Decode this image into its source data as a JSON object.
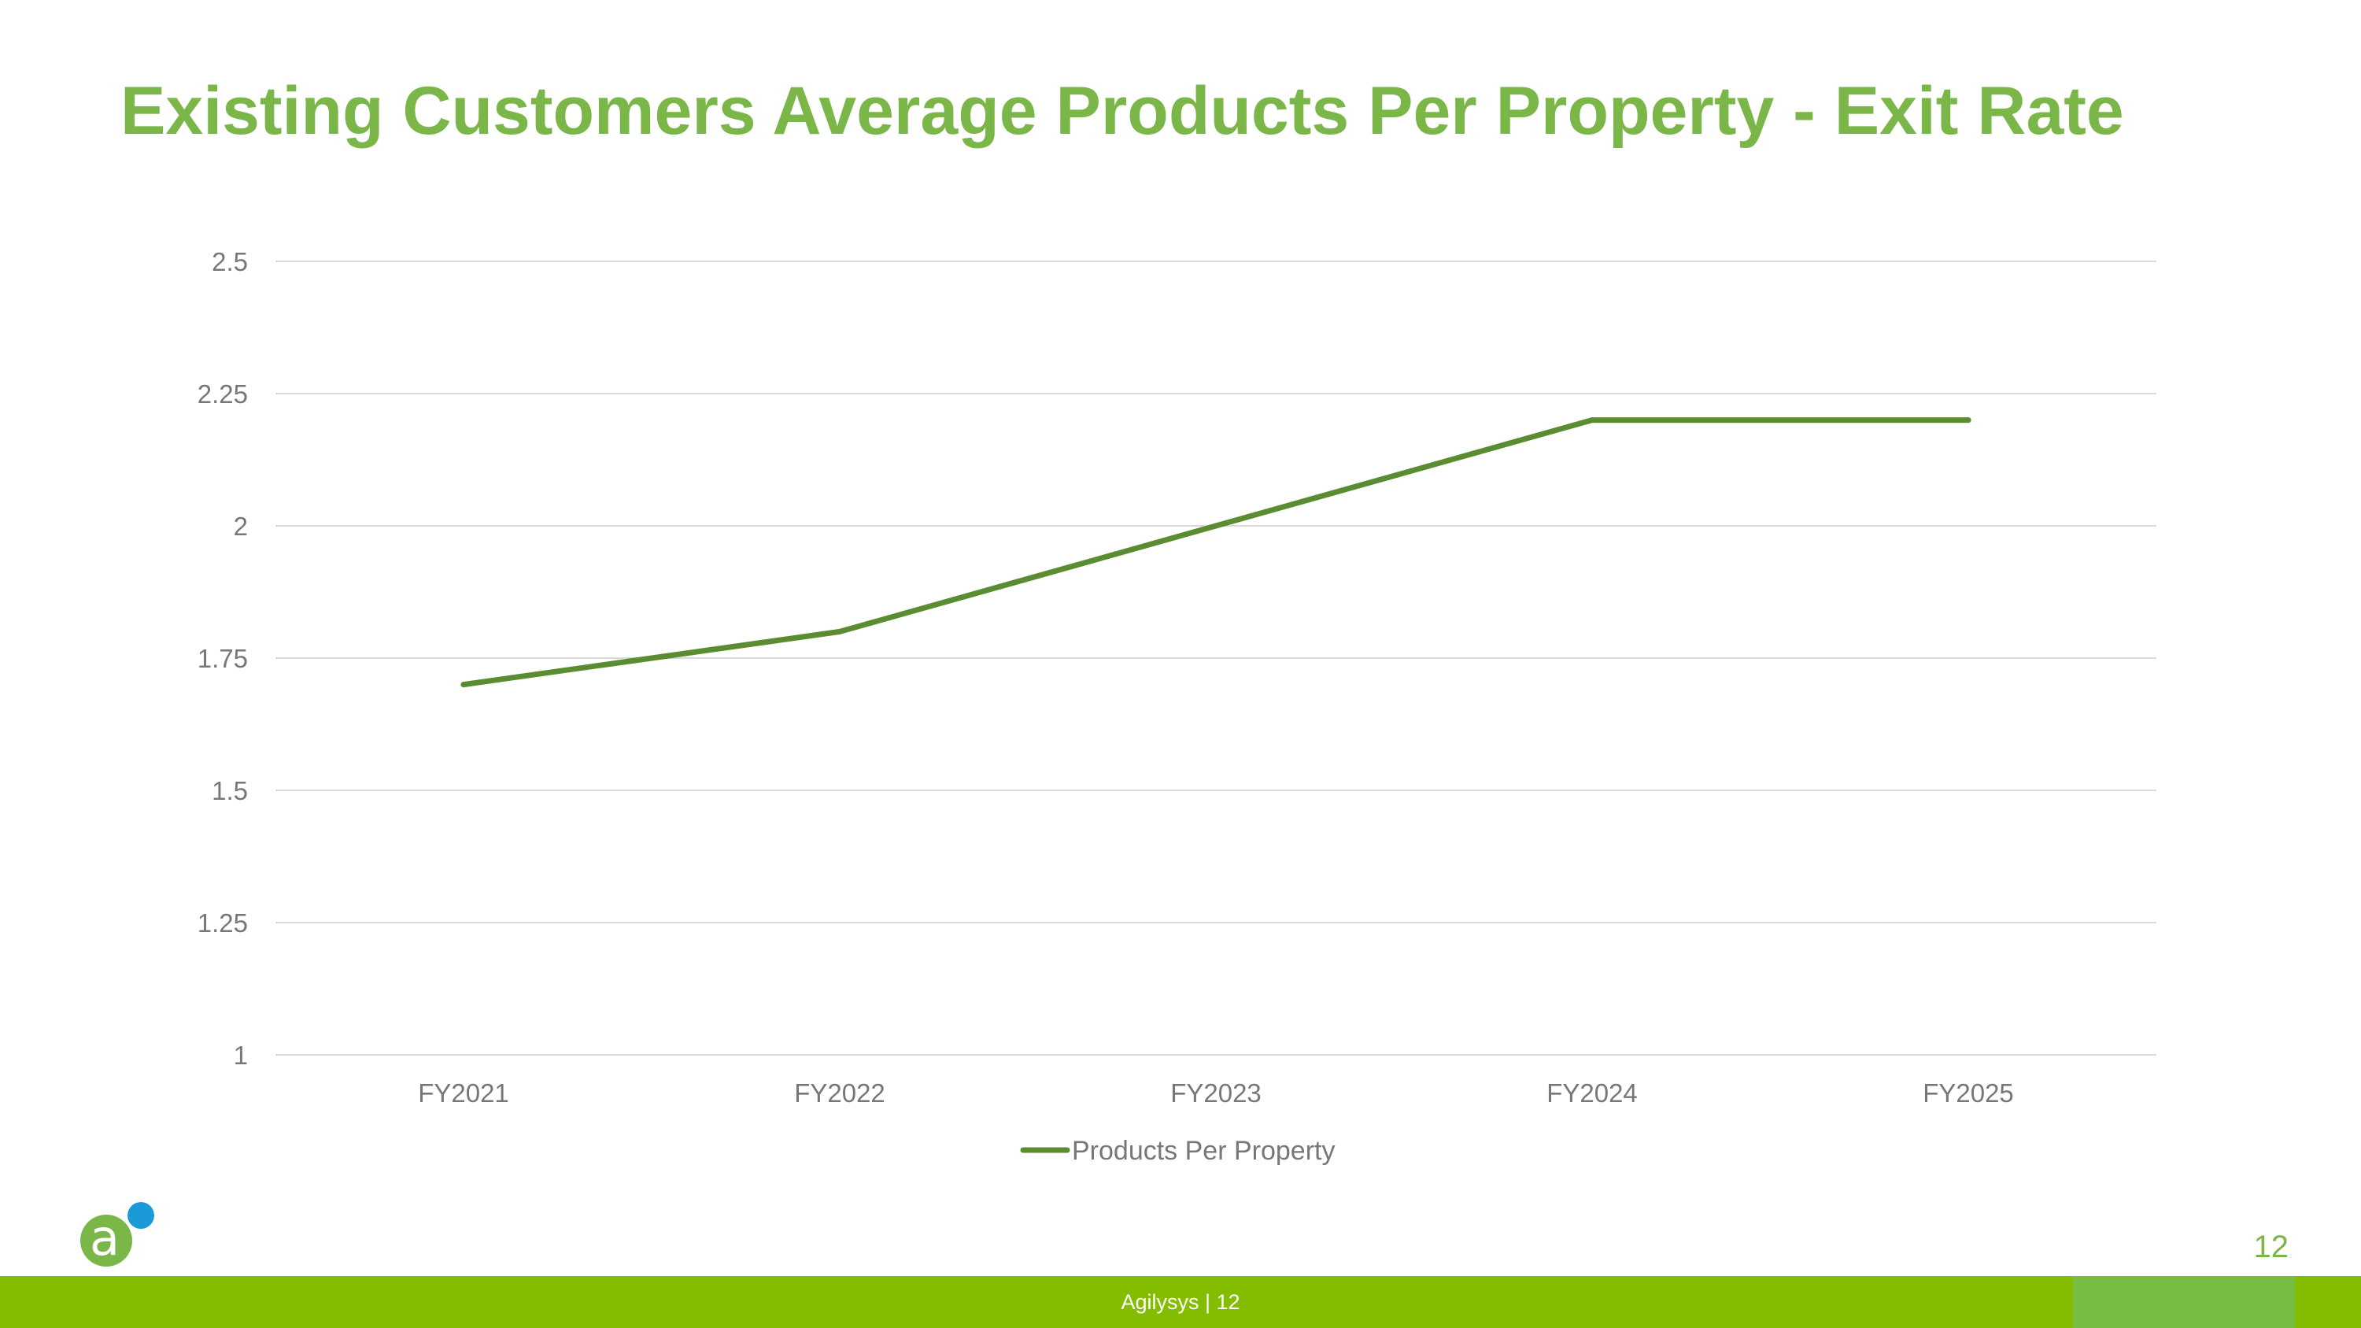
{
  "title": "Existing Customers Average Products Per Property - Exit Rate",
  "chart_data": {
    "type": "line",
    "title": "",
    "xlabel": "",
    "ylabel": "",
    "categories": [
      "FY2021",
      "FY2022",
      "FY2023",
      "FY2024",
      "FY2025"
    ],
    "series": [
      {
        "name": "Products Per Property",
        "values": [
          1.7,
          1.8,
          2.0,
          2.2,
          2.2
        ],
        "color": "#5b8c32"
      }
    ],
    "ylim": [
      1,
      2.5
    ],
    "yticks": [
      1,
      1.25,
      1.5,
      1.75,
      2,
      2.25,
      2.5
    ],
    "ytick_labels": [
      "1",
      "1.25",
      "1.5",
      "1.75",
      "2",
      "2.25",
      "2.5"
    ],
    "grid": true,
    "legend": "bottom-center"
  },
  "footer": {
    "text": "Agilysys  |  12",
    "page_number": "12",
    "logo_letter": "a",
    "bar_color": "#84bd00"
  },
  "colors": {
    "title": "#7ab648",
    "gridline": "#d9d9d9",
    "tick_text": "#777777",
    "logo_blue": "#1a9ad6"
  }
}
